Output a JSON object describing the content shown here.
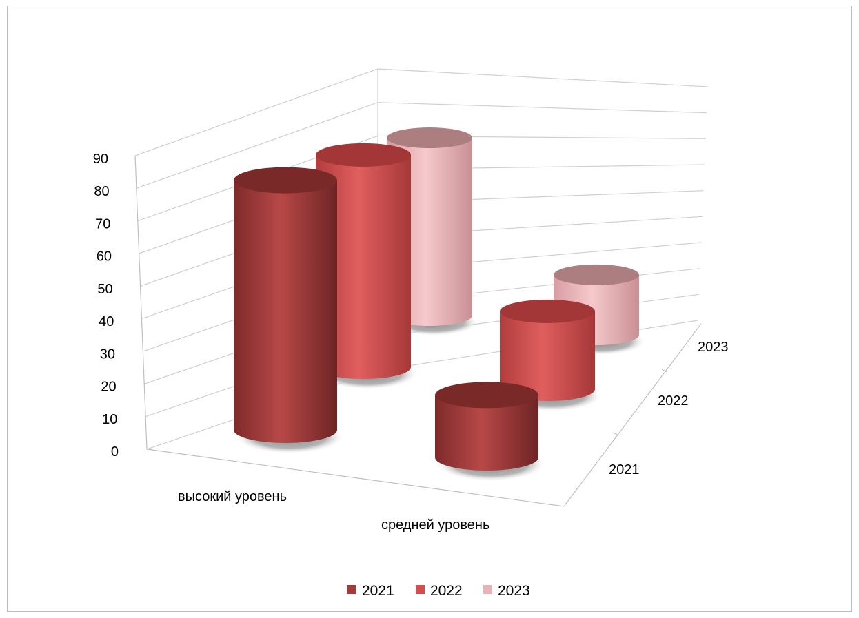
{
  "chart_data": {
    "type": "bar",
    "subtype": "3d-cylinder",
    "categories": [
      "высокий уровень",
      "средней уровень"
    ],
    "depth_labels": [
      "2021",
      "2022",
      "2023"
    ],
    "series": [
      {
        "name": "2021",
        "values": [
          80,
          20
        ],
        "color": "#a33b3b"
      },
      {
        "name": "2022",
        "values": [
          79,
          29
        ],
        "color": "#d24f4f"
      },
      {
        "name": "2023",
        "values": [
          77,
          26
        ],
        "color": "#e9b3b6"
      }
    ],
    "y_ticks": [
      "0",
      "10",
      "20",
      "30",
      "40",
      "50",
      "60",
      "70",
      "80",
      "90"
    ],
    "ylim": [
      0,
      90
    ],
    "grid": true,
    "legend_position": "bottom"
  }
}
